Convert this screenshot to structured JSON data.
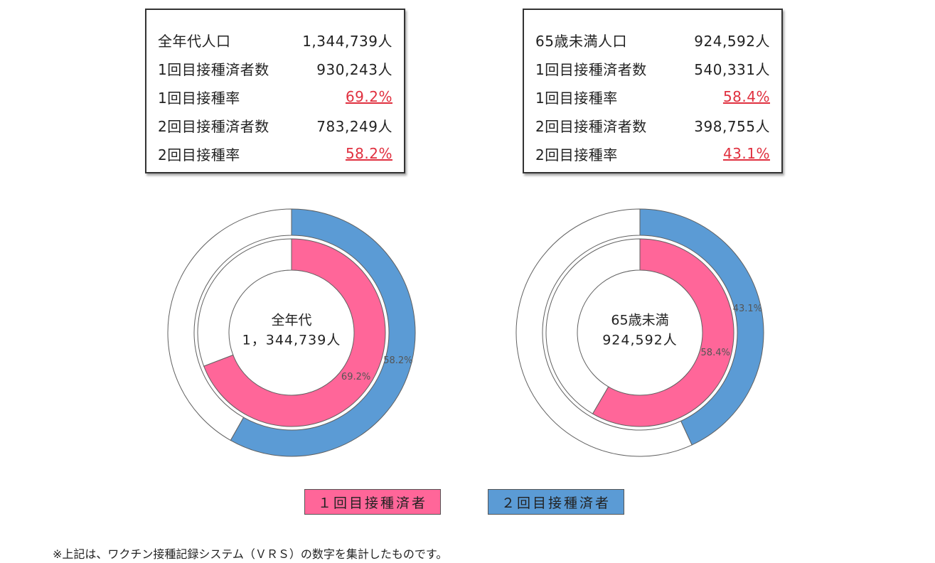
{
  "stat_boxes": [
    {
      "rows": [
        {
          "label": "全年代人口",
          "value": "1,344,739人",
          "rate": false
        },
        {
          "label": "1回目接種済者数",
          "value": "930,243人",
          "rate": false
        },
        {
          "label": "1回目接種率",
          "value": "69.2%",
          "rate": true
        },
        {
          "label": "2回目接種済者数",
          "value": "783,249人",
          "rate": false
        },
        {
          "label": "2回目接種率",
          "value": "58.2%",
          "rate": true
        }
      ]
    },
    {
      "rows": [
        {
          "label": "65歳未満人口",
          "value": "924,592人",
          "rate": false
        },
        {
          "label": "1回目接種済者数",
          "value": "540,331人",
          "rate": false
        },
        {
          "label": "1回目接種率",
          "value": "58.4%",
          "rate": true
        },
        {
          "label": "2回目接種済者数",
          "value": "398,755人",
          "rate": false
        },
        {
          "label": "2回目接種率",
          "value": "43.1%",
          "rate": true
        }
      ]
    }
  ],
  "chart_data": [
    {
      "type": "pie",
      "subtype": "nested-donut",
      "center_label_line1": "全年代",
      "center_label_line2": "1，344,739人",
      "series": [
        {
          "name": "1回目接種済者",
          "ring": "inner",
          "value": 69.2,
          "label": "69.2%",
          "color": "#ff6699"
        },
        {
          "name": "2回目接種済者",
          "ring": "outer",
          "value": 58.2,
          "label": "58.2%",
          "color": "#5b9bd5"
        }
      ]
    },
    {
      "type": "pie",
      "subtype": "nested-donut",
      "center_label_line1": "65歳未満",
      "center_label_line2": "924,592人",
      "series": [
        {
          "name": "1回目接種済者",
          "ring": "inner",
          "value": 58.4,
          "label": "58.4%",
          "color": "#ff6699"
        },
        {
          "name": "2回目接種済者",
          "ring": "outer",
          "value": 43.1,
          "label": "43.1%",
          "color": "#5b9bd5"
        }
      ]
    }
  ],
  "legend": [
    {
      "label": "１回目接種済者",
      "color": "#ff6699"
    },
    {
      "label": "２回目接種済者",
      "color": "#5b9bd5"
    }
  ],
  "footnote": "※上記は、ワクチン接種記録システム（ＶＲＳ）の数字を集計したものです。"
}
